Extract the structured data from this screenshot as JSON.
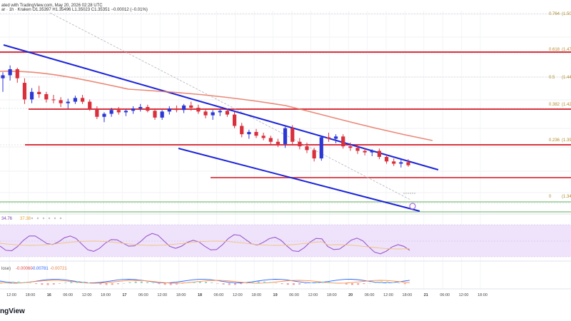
{
  "header": {
    "text": "ated with TradingView.com, May 20, 2026 02:28 UTC",
    "symbol_line": "ar · 1h · Kraken  O1.35397 H1.35496 L1.35023 C1.35351 −0.00012 (−0.01%)"
  },
  "brand": "ngView",
  "colors": {
    "up": "#2d38d4",
    "down": "#d9303c",
    "channel": "#1c24d8",
    "resistance": "#d9353f",
    "ema": "#e8735f",
    "support": "#7fbf7a",
    "rsi_line": "#9b59c9",
    "rsi_band": "#efe3fb"
  },
  "chart_data": {
    "type": "candlestick",
    "title": "",
    "fib_levels": [
      {
        "ratio": "0.764",
        "price": "(1.50"
      },
      {
        "ratio": "0.618",
        "price": "(1.47"
      },
      {
        "ratio": "0.5",
        "price": "(1.44"
      },
      {
        "ratio": "0.382",
        "price": "(1.42"
      },
      {
        "ratio": "0.236",
        "price": "(1.39"
      },
      {
        "ratio": "0",
        "price": "(1.34"
      }
    ],
    "x_ticks": [
      "12:00",
      "18:00",
      "16",
      "06:00",
      "12:00",
      "18:00",
      "17",
      "06:00",
      "12:00",
      "18:00",
      "18",
      "06:00",
      "12:00",
      "18:00",
      "19",
      "06:00",
      "12:00",
      "18:00",
      "20",
      "06:00",
      "12:00",
      "18:00",
      "21",
      "06:00",
      "12:00",
      "18:00"
    ],
    "rsi": {
      "value_text": "34.76",
      "ma_text": "37.38"
    },
    "macd": {
      "label": "lose)",
      "values": [
        "-0.00060",
        "-0.00781",
        "-0.00721"
      ]
    },
    "candles": [
      [
        1.458,
        1.466,
        1.44,
        1.462
      ],
      [
        1.462,
        1.475,
        1.455,
        1.47
      ],
      [
        1.47,
        1.472,
        1.452,
        1.458
      ],
      [
        1.452,
        1.458,
        1.424,
        1.43
      ],
      [
        1.43,
        1.445,
        1.425,
        1.44
      ],
      [
        1.44,
        1.448,
        1.432,
        1.437
      ],
      [
        1.437,
        1.44,
        1.426,
        1.43
      ],
      [
        1.43,
        1.436,
        1.425,
        1.429
      ],
      [
        1.429,
        1.433,
        1.42,
        1.425
      ],
      [
        1.425,
        1.431,
        1.418,
        1.427
      ],
      [
        1.427,
        1.435,
        1.424,
        1.432
      ],
      [
        1.432,
        1.436,
        1.424,
        1.427
      ],
      [
        1.427,
        1.43,
        1.415,
        1.418
      ],
      [
        1.418,
        1.421,
        1.404,
        1.407
      ],
      [
        1.407,
        1.413,
        1.4,
        1.411
      ],
      [
        1.411,
        1.419,
        1.407,
        1.416
      ],
      [
        1.416,
        1.42,
        1.41,
        1.413
      ],
      [
        1.413,
        1.417,
        1.408,
        1.415
      ],
      [
        1.415,
        1.421,
        1.411,
        1.418
      ],
      [
        1.418,
        1.424,
        1.414,
        1.42
      ],
      [
        1.42,
        1.423,
        1.413,
        1.415
      ],
      [
        1.415,
        1.418,
        1.403,
        1.406
      ],
      [
        1.406,
        1.416,
        1.403,
        1.414
      ],
      [
        1.414,
        1.421,
        1.41,
        1.418
      ],
      [
        1.418,
        1.422,
        1.413,
        1.416
      ],
      [
        1.416,
        1.424,
        1.412,
        1.422
      ],
      [
        1.422,
        1.427,
        1.415,
        1.419
      ],
      [
        1.419,
        1.423,
        1.411,
        1.414
      ],
      [
        1.414,
        1.418,
        1.405,
        1.409
      ],
      [
        1.409,
        1.416,
        1.403,
        1.413
      ],
      [
        1.413,
        1.418,
        1.408,
        1.415
      ],
      [
        1.415,
        1.418,
        1.407,
        1.41
      ],
      [
        1.41,
        1.414,
        1.392,
        1.395
      ],
      [
        1.395,
        1.399,
        1.38,
        1.384
      ],
      [
        1.384,
        1.39,
        1.378,
        1.387
      ],
      [
        1.387,
        1.391,
        1.379,
        1.382
      ],
      [
        1.382,
        1.386,
        1.376,
        1.379
      ],
      [
        1.379,
        1.382,
        1.37,
        1.374
      ],
      [
        1.374,
        1.378,
        1.367,
        1.371
      ],
      [
        1.371,
        1.394,
        1.366,
        1.392
      ],
      [
        1.392,
        1.396,
        1.37,
        1.374
      ],
      [
        1.374,
        1.379,
        1.364,
        1.368
      ],
      [
        1.368,
        1.373,
        1.359,
        1.363
      ],
      [
        1.363,
        1.366,
        1.348,
        1.352
      ],
      [
        1.352,
        1.381,
        1.349,
        1.38
      ],
      [
        1.38,
        1.386,
        1.374,
        1.378
      ],
      [
        1.378,
        1.384,
        1.372,
        1.381
      ],
      [
        1.381,
        1.384,
        1.365,
        1.368
      ],
      [
        1.368,
        1.373,
        1.362,
        1.366
      ],
      [
        1.366,
        1.37,
        1.358,
        1.362
      ],
      [
        1.362,
        1.366,
        1.356,
        1.36
      ],
      [
        1.36,
        1.364,
        1.355,
        1.362
      ],
      [
        1.362,
        1.365,
        1.351,
        1.354
      ],
      [
        1.354,
        1.357,
        1.345,
        1.348
      ],
      [
        1.348,
        1.352,
        1.342,
        1.345
      ],
      [
        1.345,
        1.35,
        1.34,
        1.347
      ],
      [
        1.347,
        1.351,
        1.341,
        1.343
      ]
    ]
  }
}
